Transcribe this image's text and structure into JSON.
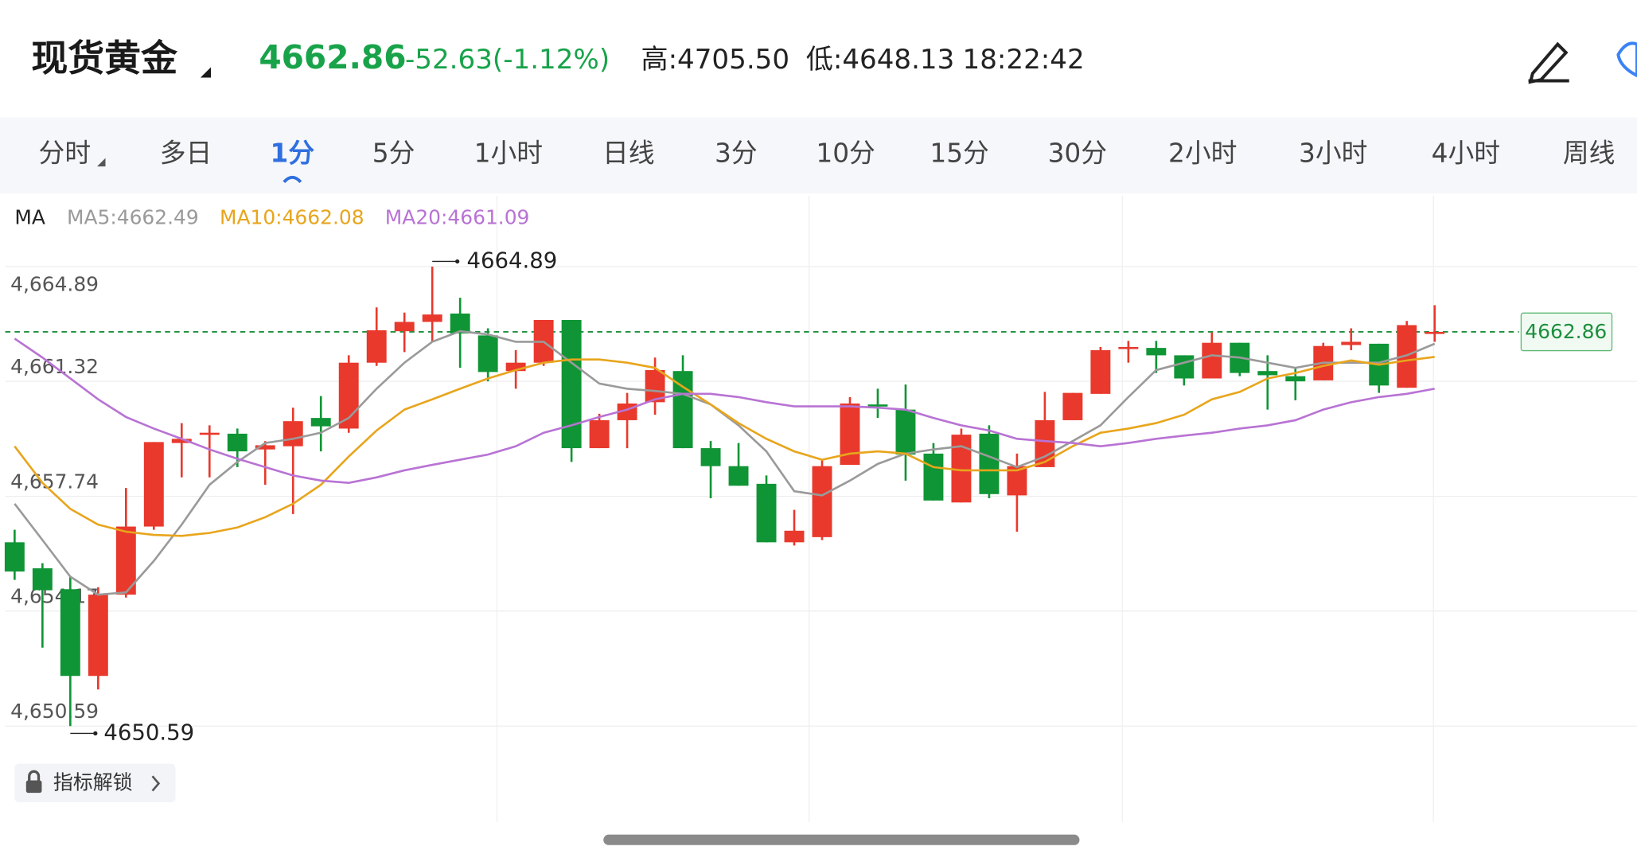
{
  "header": {
    "title": "现货黄金",
    "price": "4662.86",
    "change": "-52.63(-1.12%)",
    "high": "高:4705.50",
    "low": "低:4648.13",
    "time": "18:22:42"
  },
  "tabs": [
    "分时",
    "多日",
    "1分",
    "5分",
    "1小时",
    "日线",
    "3分",
    "10分",
    "15分",
    "30分",
    "2小时",
    "3小时",
    "4小时",
    "周线"
  ],
  "active_tab": 2,
  "unlock_button": "指标解锁",
  "chart_data": {
    "type": "candlestick",
    "legend_title": "MA",
    "up_color": "#e8392c",
    "down_color": "#0f9535",
    "ylim": [
      4647.6,
      4667.1
    ],
    "yticks": [
      {
        "value": 4650.59,
        "label": "4,650.59"
      },
      {
        "value": 4654.17,
        "label": "4,654.17"
      },
      {
        "value": 4657.74,
        "label": "4,657.74"
      },
      {
        "value": 4661.32,
        "label": "4,661.32"
      },
      {
        "value": 4664.89,
        "label": "4,664.89"
      }
    ],
    "grid": true,
    "current_price": 4662.86,
    "max_label": "4664.89",
    "min_label": "4650.59",
    "open": [
      4656.31,
      4655.5,
      4654.85,
      4652.15,
      4654.68,
      4656.8,
      4659.4,
      4659.66,
      4659.69,
      4659.2,
      4659.3,
      4660.18,
      4659.85,
      4661.9,
      4662.88,
      4663.17,
      4663.43,
      4662.75,
      4661.64,
      4661.9,
      4663.23,
      4659.24,
      4660.11,
      4660.67,
      4661.64,
      4659.24,
      4658.68,
      4658.13,
      4656.31,
      4656.47,
      4658.72,
      4660.6,
      4660.44,
      4659.07,
      4657.55,
      4659.69,
      4657.77,
      4658.65,
      4660.11,
      4660.93,
      4662.36,
      4662.36,
      4662.13,
      4661.41,
      4662.52,
      4661.64,
      4661.48,
      4661.35,
      4662.45,
      4662.49,
      4661.12,
      4662.84
    ],
    "high": [
      4656.7,
      4655.66,
      4655.24,
      4654.91,
      4658.0,
      4659.43,
      4660.02,
      4659.95,
      4659.85,
      4659.46,
      4660.5,
      4660.86,
      4662.13,
      4663.62,
      4663.46,
      4664.89,
      4663.92,
      4662.97,
      4662.29,
      4663.23,
      4663.23,
      4660.31,
      4660.96,
      4662.06,
      4662.13,
      4659.46,
      4659.4,
      4658.39,
      4657.32,
      4658.88,
      4660.83,
      4661.09,
      4661.22,
      4659.4,
      4659.85,
      4659.95,
      4659.07,
      4660.99,
      4660.96,
      4662.39,
      4662.58,
      4662.58,
      4662.13,
      4662.84,
      4662.52,
      4662.13,
      4661.74,
      4662.52,
      4662.97,
      4662.49,
      4663.2,
      4663.69
    ],
    "low": [
      4655.14,
      4653.03,
      4650.59,
      4651.73,
      4654.59,
      4656.7,
      4658.33,
      4658.33,
      4658.65,
      4658.1,
      4657.19,
      4659.14,
      4659.72,
      4661.8,
      4662.23,
      4662.55,
      4661.74,
      4661.32,
      4661.09,
      4661.8,
      4658.81,
      4659.24,
      4659.24,
      4660.28,
      4659.24,
      4657.68,
      4658.07,
      4656.31,
      4656.21,
      4656.38,
      4658.72,
      4660.18,
      4658.23,
      4657.61,
      4657.55,
      4657.68,
      4656.64,
      4658.65,
      4660.11,
      4660.93,
      4661.9,
      4661.58,
      4661.19,
      4661.41,
      4661.48,
      4660.44,
      4660.73,
      4661.35,
      4662.29,
      4660.96,
      4661.12,
      4662.55
    ],
    "close": [
      4655.4,
      4654.82,
      4652.15,
      4654.68,
      4656.8,
      4659.43,
      4659.53,
      4659.72,
      4659.14,
      4659.33,
      4660.08,
      4659.92,
      4661.9,
      4662.91,
      4663.17,
      4663.4,
      4662.81,
      4661.61,
      4661.9,
      4663.23,
      4659.24,
      4660.11,
      4660.63,
      4661.67,
      4659.24,
      4658.68,
      4658.07,
      4656.31,
      4656.67,
      4658.68,
      4660.63,
      4660.54,
      4659.04,
      4657.61,
      4659.66,
      4657.81,
      4658.68,
      4660.11,
      4660.96,
      4662.29,
      4662.39,
      4662.13,
      4661.41,
      4662.52,
      4661.58,
      4661.51,
      4661.32,
      4662.42,
      4662.55,
      4661.19,
      4663.07,
      4662.86
    ],
    "series": [
      {
        "name": "MA5:4662.49",
        "color": "#9a9a9a",
        "values": [
          4657.51,
          4656.38,
          4655.24,
          4654.68,
          4654.75,
          4655.73,
          4656.86,
          4658.1,
          4658.81,
          4659.4,
          4659.53,
          4659.72,
          4660.18,
          4661.09,
          4661.9,
          4662.55,
          4662.88,
          4662.78,
          4662.55,
          4662.55,
          4661.9,
          4661.25,
          4661.09,
          4661.02,
          4660.93,
          4660.6,
          4659.95,
          4659.14,
          4657.9,
          4657.77,
          4658.23,
          4658.75,
          4659.07,
          4659.2,
          4659.3,
          4658.98,
          4658.65,
          4658.98,
          4659.46,
          4659.95,
          4660.83,
          4661.67,
          4661.9,
          4662.13,
          4662.06,
          4661.9,
          4661.74,
          4661.9,
          4661.9,
          4661.9,
          4662.13,
          4662.49
        ]
      },
      {
        "name": "MA10:4662.08",
        "color": "#e8a51c",
        "values": [
          4659.3,
          4658.16,
          4657.35,
          4656.86,
          4656.64,
          4656.54,
          4656.51,
          4656.6,
          4656.77,
          4657.09,
          4657.51,
          4658.1,
          4658.98,
          4659.79,
          4660.44,
          4660.76,
          4661.09,
          4661.41,
          4661.67,
          4661.9,
          4662.0,
          4662.0,
          4661.9,
          4661.74,
          4661.15,
          4660.6,
          4660.02,
          4659.53,
          4659.14,
          4658.88,
          4659.07,
          4659.14,
          4659.07,
          4658.65,
          4658.55,
          4658.55,
          4658.55,
          4658.81,
          4659.3,
          4659.72,
          4659.85,
          4660.02,
          4660.28,
          4660.76,
          4660.99,
          4661.41,
          4661.58,
          4661.8,
          4661.97,
          4661.84,
          4661.97,
          4662.08
        ]
      },
      {
        "name": "MA20:4661.09",
        "color": "#b873d4",
        "values": [
          4662.65,
          4662.06,
          4661.41,
          4660.76,
          4660.21,
          4659.85,
          4659.53,
          4659.2,
          4658.91,
          4658.65,
          4658.39,
          4658.23,
          4658.16,
          4658.33,
          4658.55,
          4658.72,
          4658.88,
          4659.04,
          4659.3,
          4659.72,
          4659.95,
          4660.21,
          4660.44,
          4660.76,
          4660.93,
          4660.93,
          4660.83,
          4660.67,
          4660.54,
          4660.54,
          4660.54,
          4660.5,
          4660.44,
          4660.18,
          4659.95,
          4659.79,
          4659.53,
          4659.46,
          4659.4,
          4659.3,
          4659.4,
          4659.53,
          4659.63,
          4659.72,
          4659.85,
          4659.95,
          4660.11,
          4660.44,
          4660.67,
          4660.83,
          4660.93,
          4661.09
        ]
      }
    ]
  }
}
